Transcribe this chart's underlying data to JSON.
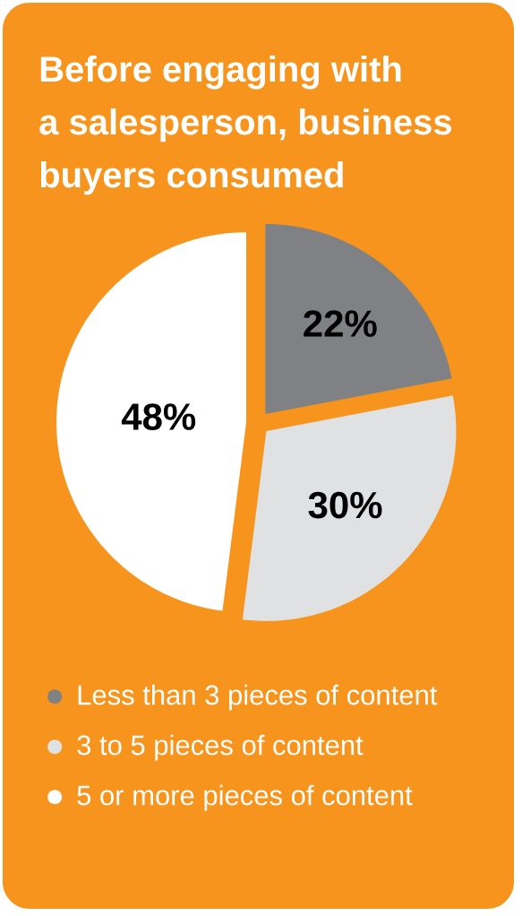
{
  "chart_data": {
    "type": "pie",
    "title": "Before engaging with a salesperson, business buyers consumed",
    "categories": [
      "Less than 3 pieces of content",
      "3 to 5 pieces of content",
      "5 or more pieces of content"
    ],
    "values": [
      22,
      30,
      48
    ],
    "value_labels": [
      "22%",
      "30%",
      "48%"
    ],
    "colors": [
      "#808184",
      "#e0e1e3",
      "#ffffff"
    ],
    "legend": "bottom"
  }
}
